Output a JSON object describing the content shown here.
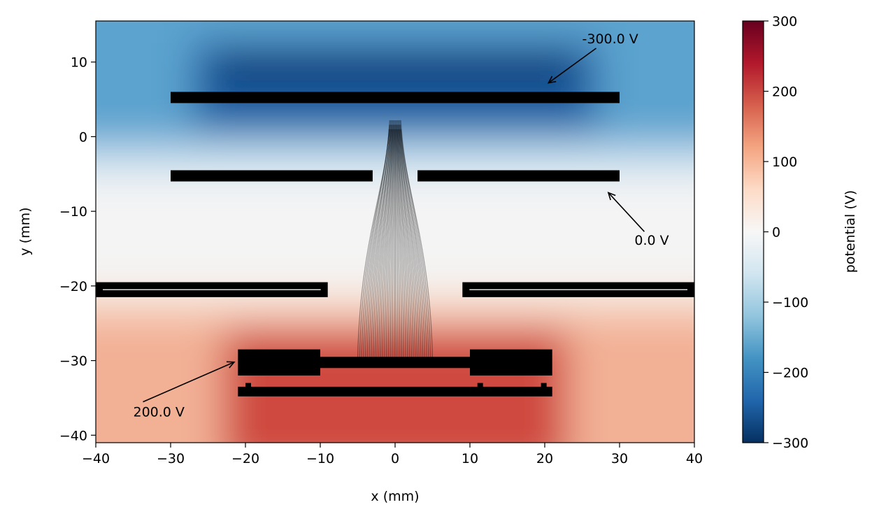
{
  "chart_data": {
    "type": "heatmap",
    "title": "",
    "xlabel": "x (mm)",
    "ylabel": "y (mm)",
    "xlim": [
      -40,
      40
    ],
    "ylim": [
      -41,
      15.5
    ],
    "xticks": [
      -40,
      -30,
      -20,
      -10,
      0,
      10,
      20,
      30,
      40
    ],
    "yticks": [
      -40,
      -30,
      -20,
      -10,
      0,
      10
    ],
    "xtick_labels": [
      "−40",
      "−30",
      "−20",
      "−10",
      "0",
      "10",
      "20",
      "30",
      "40"
    ],
    "ytick_labels": [
      "−40",
      "−30",
      "−20",
      "−10",
      "0",
      "10"
    ],
    "colormap": "RdBu_r",
    "colorbar": {
      "label": "potential (V)",
      "range": [
        -300,
        300
      ],
      "ticks": [
        -300,
        -200,
        -100,
        0,
        100,
        200,
        300
      ],
      "tick_labels": [
        "−300",
        "−200",
        "−100",
        "0",
        "100",
        "200",
        "300"
      ]
    },
    "electrodes": [
      {
        "name": "top plate",
        "potential_V": -300,
        "x": [
          -30,
          30
        ],
        "y": [
          4.5,
          6
        ]
      },
      {
        "name": "middle left",
        "potential_V": 0,
        "x": [
          -30,
          -3
        ],
        "y": [
          -6,
          -4.5
        ]
      },
      {
        "name": "middle right",
        "potential_V": 0,
        "x": [
          3,
          30
        ],
        "y": [
          -6,
          -4.5
        ]
      },
      {
        "name": "lower left",
        "potential_V": 0,
        "x": [
          -40,
          -9
        ],
        "y": [
          -21.5,
          -19.5
        ]
      },
      {
        "name": "lower right",
        "potential_V": 0,
        "x": [
          9,
          40
        ],
        "y": [
          -21.5,
          -19.5
        ]
      },
      {
        "name": "bottom assembly",
        "potential_V": 200,
        "x": [
          -21,
          21
        ],
        "y": [
          -35,
          -28.5
        ]
      }
    ],
    "annotations": [
      {
        "text": "-300.0 V",
        "text_at": [
          25,
          12.5
        ],
        "arrow_to": [
          20.5,
          7.2
        ]
      },
      {
        "text": "0.0 V",
        "text_at": [
          32,
          -14.5
        ],
        "arrow_to": [
          28.5,
          -7.5
        ]
      },
      {
        "text": "200.0 V",
        "text_at": [
          -35,
          -37.5
        ],
        "arrow_to": [
          -21.5,
          -30.2
        ]
      }
    ],
    "trajectories": {
      "count": 40,
      "start_y": -30,
      "end_y": 1,
      "start_x_range": [
        -5,
        5
      ],
      "end_x_range": [
        -0.8,
        0.8
      ]
    }
  }
}
